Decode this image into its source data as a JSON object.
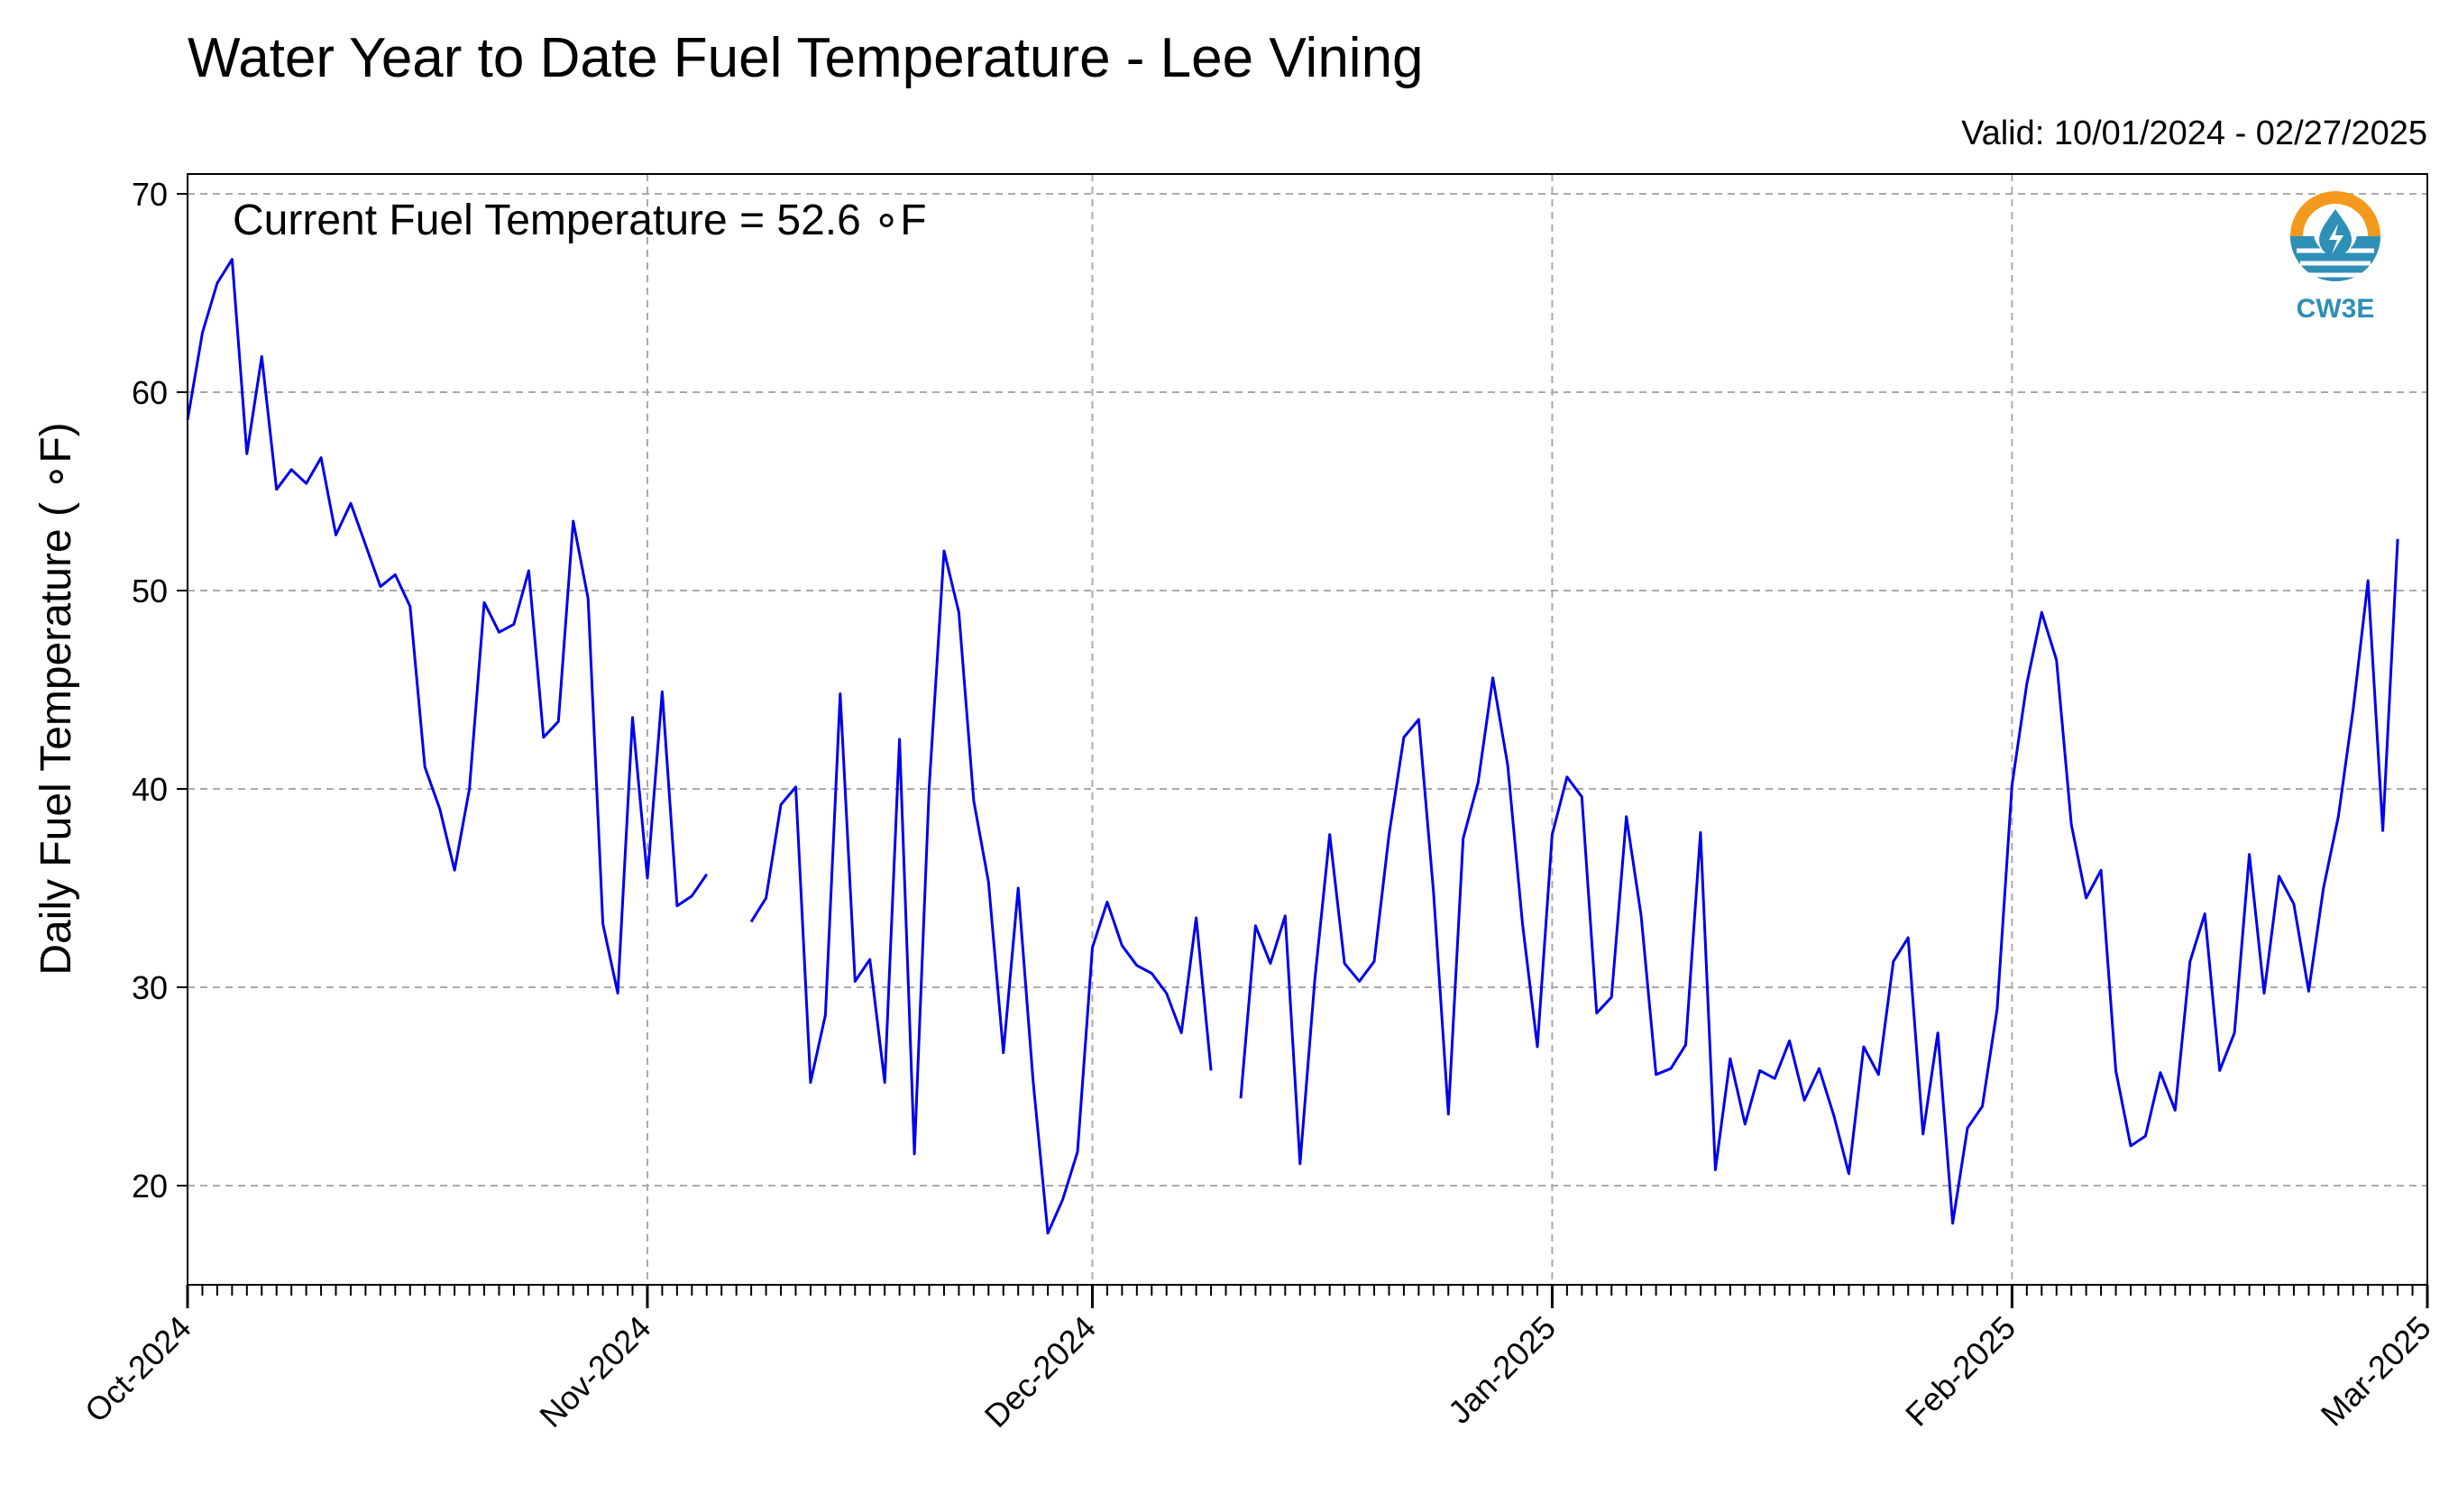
{
  "chart_data": {
    "type": "line",
    "title": "Water Year to Date Fuel Temperature - Lee Vining",
    "subtitle": "Valid: 10/01/2024 - 02/27/2025",
    "ylabel": "Daily Fuel Temperature ( ∘F)",
    "xlabel": "",
    "annotation": "Current Fuel Temperature = 52.6 ∘F",
    "ylim": [
      15,
      71
    ],
    "xlim": [
      "2024-10-01",
      "2025-03-01"
    ],
    "yticks": [
      20,
      30,
      40,
      50,
      60,
      70
    ],
    "xtick_labels": [
      "Oct-2024",
      "Nov-2024",
      "Dec-2024",
      "Jan-2025",
      "Feb-2025",
      "Mar-2025"
    ],
    "xtick_dates": [
      "2024-10-01",
      "2024-11-01",
      "2024-12-01",
      "2025-01-01",
      "2025-02-01",
      "2025-03-01"
    ],
    "grid": true,
    "line_color": "#0000ee",
    "series": [
      {
        "start_date": "2024-10-01",
        "values": [
          58.6,
          63.0,
          65.5,
          66.7,
          56.9,
          61.8,
          55.1,
          56.1,
          55.4,
          56.7,
          52.8,
          54.4,
          52.3,
          50.2,
          50.8,
          49.2,
          41.1,
          39.0,
          35.9,
          40.0,
          49.4,
          47.9,
          48.3,
          51.0,
          42.6,
          43.4,
          53.5,
          49.6,
          33.2,
          29.7,
          43.6,
          35.5,
          44.9,
          34.1,
          34.6,
          35.7,
          null,
          null,
          33.3,
          34.5,
          39.2,
          40.1,
          25.2,
          28.6,
          44.8,
          30.3,
          31.4,
          25.2,
          42.5,
          21.6,
          40.1,
          52.0,
          48.9,
          39.4,
          35.3,
          26.7,
          35.0,
          25.3,
          17.6,
          19.3,
          21.7,
          32.0,
          34.3,
          32.1,
          31.1,
          30.7,
          29.7,
          27.7,
          33.5,
          25.8,
          null,
          24.4,
          33.1,
          31.2,
          33.6,
          21.1,
          30.4,
          37.7,
          31.2,
          30.3,
          31.3,
          37.7,
          42.6,
          43.5,
          34.8,
          23.6,
          37.5,
          40.3,
          45.6,
          41.2,
          33.2,
          27.0,
          37.7,
          40.6,
          39.6,
          28.7,
          29.5,
          38.6,
          33.6,
          25.6,
          25.9,
          27.1,
          37.8,
          20.8,
          26.4,
          23.1,
          25.8,
          25.4,
          27.3,
          24.3,
          25.9,
          23.5,
          20.6,
          27.0,
          25.6,
          31.3,
          32.5,
          22.6,
          27.7,
          18.1,
          22.9,
          24.0,
          28.9,
          40.2,
          45.3,
          48.9,
          46.5,
          38.2,
          34.5,
          35.9,
          25.8,
          22.0,
          22.5,
          25.7,
          23.8,
          31.3,
          33.7,
          25.8,
          27.7,
          36.7,
          29.7,
          35.6,
          34.2,
          29.8,
          35.0,
          38.6,
          44.0,
          50.5,
          37.9,
          52.6
        ]
      }
    ]
  },
  "logo": {
    "text": "CW3E",
    "colors": {
      "sun": "#f39a1e",
      "water": "#2e8fb7"
    }
  }
}
